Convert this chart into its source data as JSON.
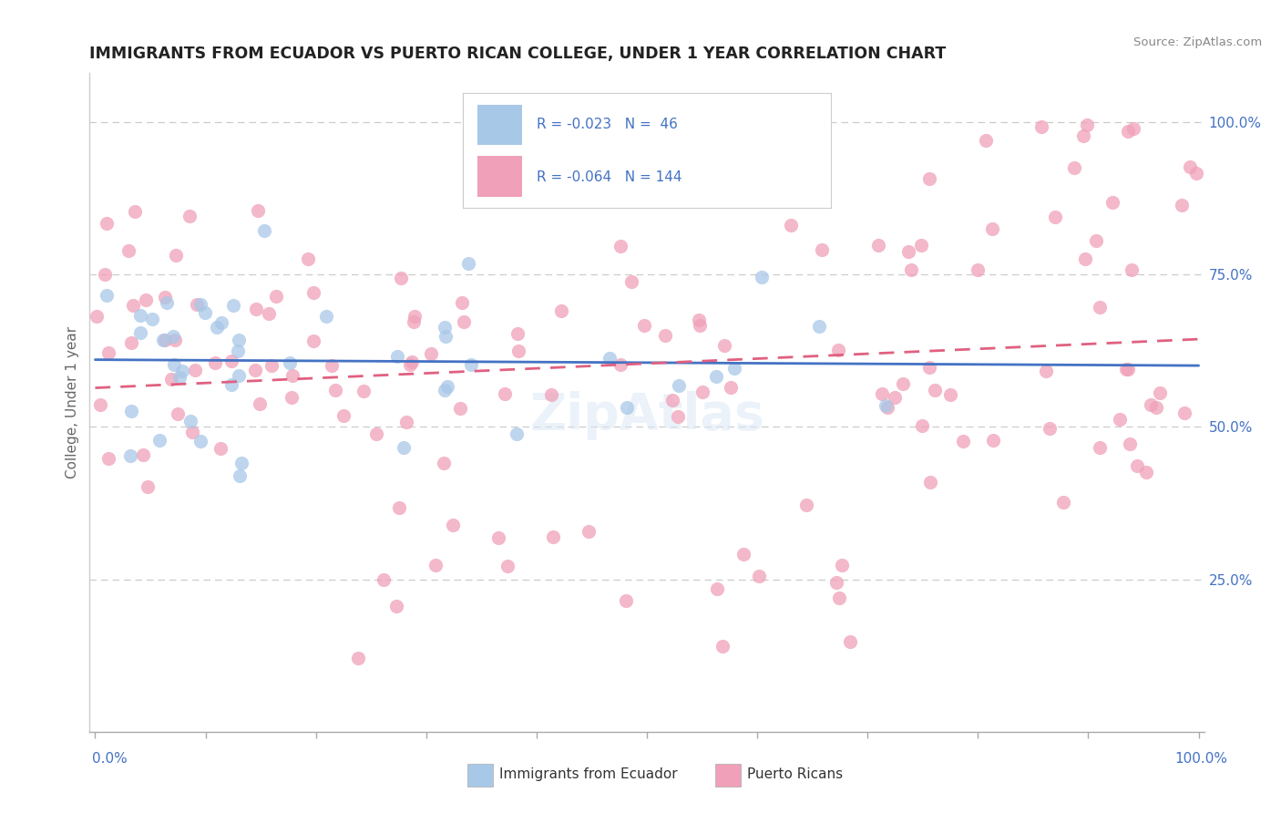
{
  "title": "IMMIGRANTS FROM ECUADOR VS PUERTO RICAN COLLEGE, UNDER 1 YEAR CORRELATION CHART",
  "source": "Source: ZipAtlas.com",
  "ylabel": "College, Under 1 year",
  "color_ecuador": "#a8c8e8",
  "color_pr": "#f0a0b8",
  "trendline_ecuador": "#4472c4",
  "trendline_pr": "#e06080",
  "r_ecuador": -0.023,
  "r_pr": -0.064,
  "n_ecuador": 46,
  "n_pr": 144,
  "background_color": "#ffffff",
  "grid_color": "#cccccc",
  "title_color": "#222222",
  "source_color": "#888888",
  "axis_label_color": "#4472c4",
  "ylabel_color": "#666666"
}
